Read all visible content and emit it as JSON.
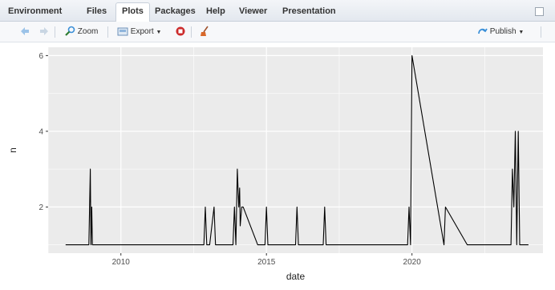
{
  "tabs": [
    {
      "label": "Environment"
    },
    {
      "label": "Files"
    },
    {
      "label": "Plots",
      "active": true
    },
    {
      "label": "Packages"
    },
    {
      "label": "Help"
    },
    {
      "label": "Viewer"
    },
    {
      "label": "Presentation"
    }
  ],
  "toolbar": {
    "zoom_label": "Zoom",
    "export_label": "Export",
    "publish_label": "Publish"
  },
  "colors": {
    "panel_bg": "#ebebeb",
    "grid": "#ffffff",
    "line": "#000000",
    "stop_icon": "#cc2b2b",
    "broom_icon": "#d8682a",
    "publish_icon": "#3a8fd8"
  },
  "icons": [
    "arrow-left-icon",
    "arrow-right-icon",
    "zoom-icon",
    "export-icon",
    "dropdown-icon",
    "stop-icon",
    "broom-icon",
    "publish-icon"
  ],
  "chart_data": {
    "type": "line",
    "title": "",
    "xlabel": "date",
    "ylabel": "n",
    "xlim": [
      2007.5,
      2024.5
    ],
    "ylim": [
      0.78,
      6.22
    ],
    "x_ticks": [
      {
        "value": 2010,
        "label": "2010"
      },
      {
        "value": 2015,
        "label": "2015"
      },
      {
        "value": 2020,
        "label": "2020"
      }
    ],
    "y_ticks": [
      {
        "value": 2,
        "label": "2"
      },
      {
        "value": 4,
        "label": "4"
      },
      {
        "value": 6,
        "label": "6"
      }
    ],
    "grid": true,
    "legend": "none",
    "series": [
      {
        "x": [
          2008.1,
          2008.9,
          2008.95,
          2008.97,
          2009.0,
          2009.02,
          2009.05,
          2012.85,
          2012.9,
          2012.95,
          2013.0,
          2013.05,
          2013.2,
          2013.25,
          2013.3,
          2013.35,
          2013.85,
          2013.9,
          2013.95,
          2014.0,
          2014.05,
          2014.08,
          2014.1,
          2014.15,
          2014.2,
          2014.7,
          2014.95,
          2015.0,
          2015.05,
          2016.0,
          2016.05,
          2016.1,
          2016.15,
          2016.95,
          2017.0,
          2017.05,
          2017.1,
          2019.85,
          2019.9,
          2019.95,
          2020.0,
          2021.1,
          2021.15,
          2021.9,
          2023.4,
          2023.45,
          2023.5,
          2023.55,
          2023.6,
          2023.65,
          2023.7,
          2024.0
        ],
        "y": [
          1,
          1,
          3,
          1,
          2,
          1,
          1,
          1,
          2,
          1,
          1,
          1,
          2,
          1,
          1,
          1,
          1,
          2,
          1,
          3,
          2,
          2.5,
          1.5,
          2,
          2,
          1,
          1,
          2,
          1,
          1,
          2,
          1,
          1,
          1,
          2,
          1,
          1,
          1,
          2,
          1,
          6,
          1,
          2,
          1,
          1,
          3,
          2,
          4,
          1,
          4,
          1,
          1
        ]
      }
    ]
  }
}
